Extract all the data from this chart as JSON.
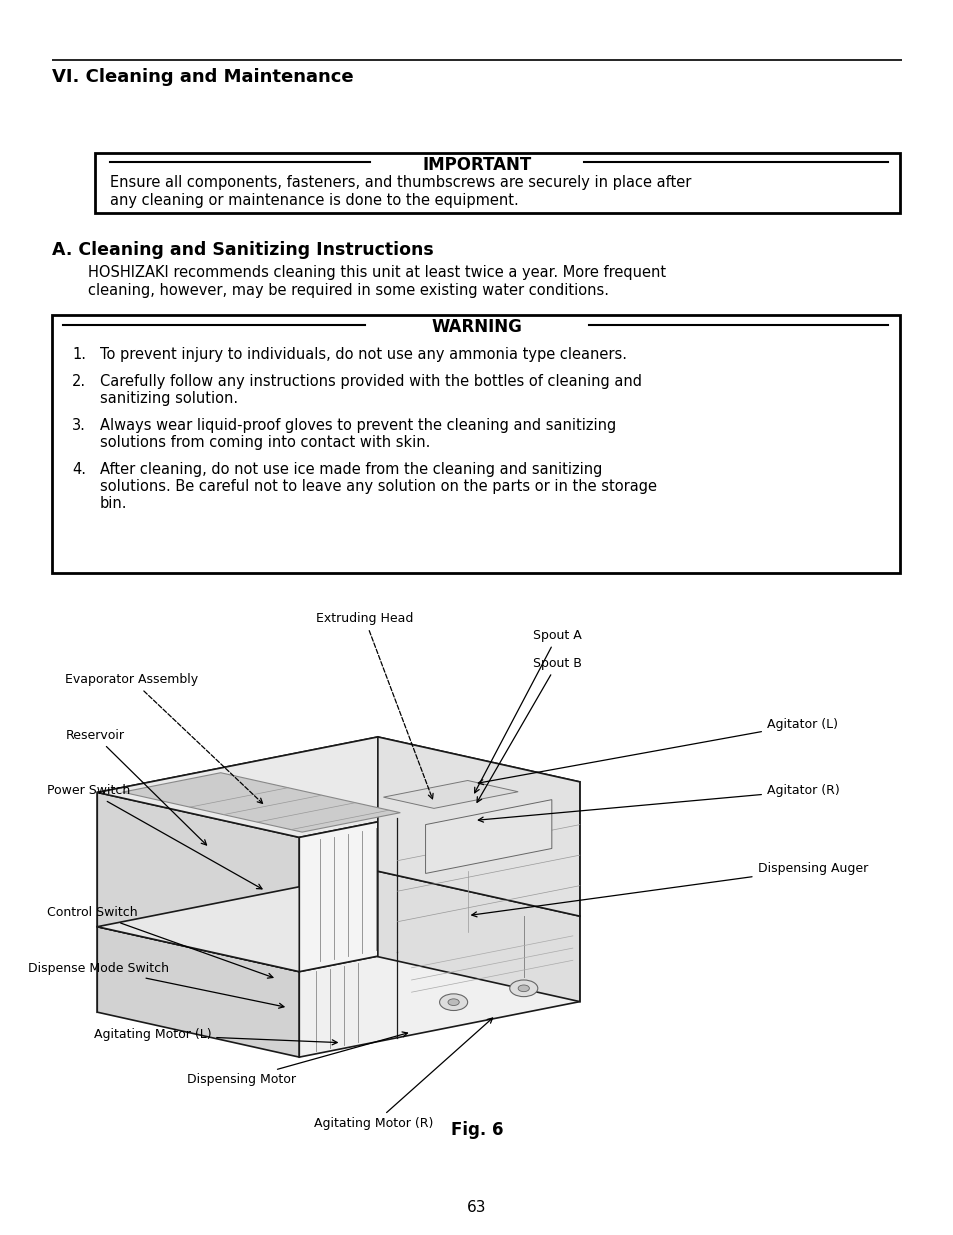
{
  "bg_color": "#ffffff",
  "page_number": "63",
  "section_title": "VI. Cleaning and Maintenance",
  "important_label": "IMPORTANT",
  "important_text_line1": "Ensure all components, fasteners, and thumbscrews are securely in place after",
  "important_text_line2": "any cleaning or maintenance is done to the equipment.",
  "subsection_title": "A. Cleaning and Sanitizing Instructions",
  "subsection_body_line1": "HOSHIZAKI recommends cleaning this unit at least twice a year. More frequent",
  "subsection_body_line2": "cleaning, however, may be required in some existing water conditions.",
  "warning_label": "WARNING",
  "fig_caption": "Fig. 6",
  "font_family": "DejaVu Sans"
}
